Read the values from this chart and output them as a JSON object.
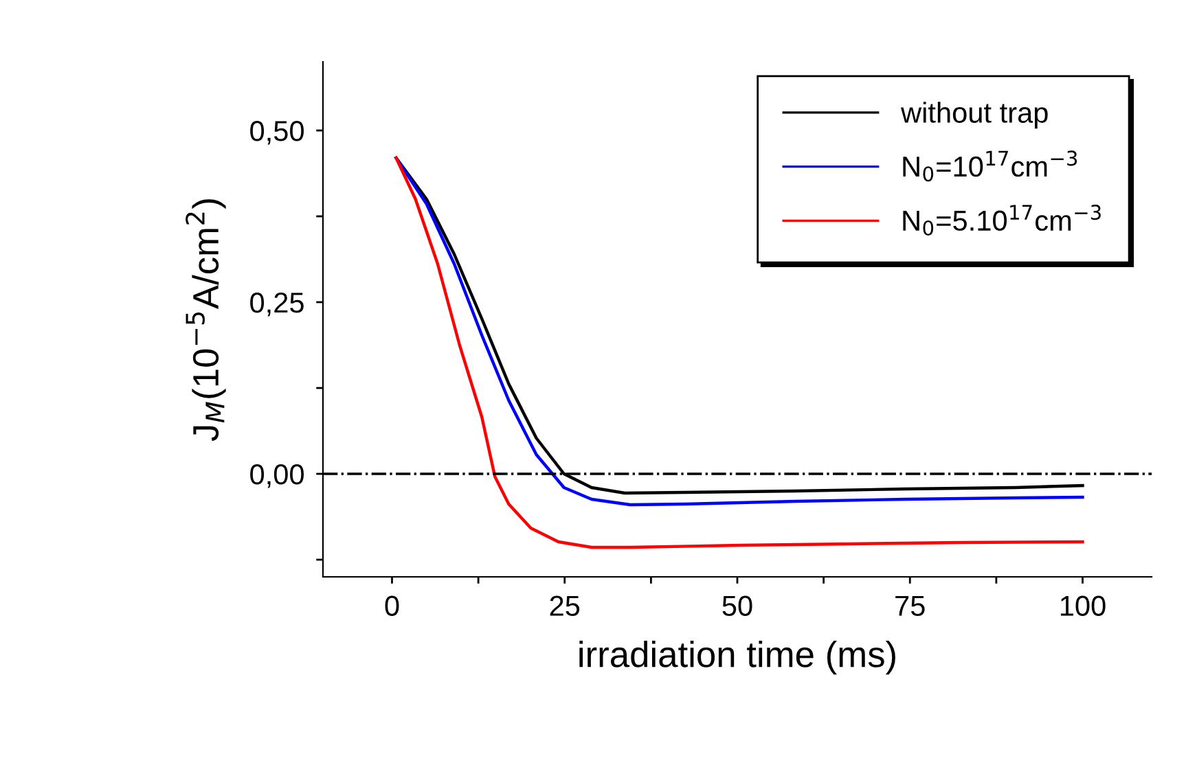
{
  "chart_data": {
    "type": "line",
    "xlabel": "irradiation time (ms)",
    "ylabel": "J$_{M}$(10$^{−5}$A/cm$^{2}$)",
    "xlim": [
      -10,
      110
    ],
    "ylim": [
      -0.15,
      0.6
    ],
    "xticks": [
      0,
      25,
      50,
      75,
      100,
      {
        "value": 12.5,
        "label": null
      },
      {
        "value": 37.5,
        "label": null
      },
      {
        "value": 62.5,
        "label": null
      },
      {
        "value": 87.5,
        "label": null
      }
    ],
    "yticks": [
      {
        "value": 0.0,
        "label": "0,00"
      },
      {
        "value": 0.25,
        "label": "0,25"
      },
      {
        "value": 0.5,
        "label": "0,50"
      },
      {
        "value": -0.125,
        "label": null
      },
      {
        "value": 0.125,
        "label": null
      },
      {
        "value": 0.375,
        "label": null
      }
    ],
    "grid": false,
    "legend": "top right",
    "line_style": "solid",
    "marker": "none",
    "ref_lines": [
      {
        "axis": "y",
        "value": 0,
        "label": null,
        "color": "#000000",
        "line_style": "dashdot"
      }
    ],
    "series": [
      {
        "name": "without trap",
        "color": "#000000",
        "x": [
          0.6,
          5.0,
          9.0,
          13.0,
          16.9,
          20.9,
          24.9,
          28.9,
          33.7,
          42.4,
          58.4,
          74.3,
          90.2,
          100
        ],
        "values": [
          0.46,
          0.4,
          0.32,
          0.226,
          0.131,
          0.052,
          0.0,
          -0.02,
          -0.028,
          -0.027,
          -0.025,
          -0.022,
          -0.02,
          -0.017
        ]
      },
      {
        "name": "N$_{0}$=10$^{17}$cm$^{−3}$",
        "color": "#0000ff",
        "x": [
          0.6,
          5.0,
          9.0,
          13.0,
          16.9,
          20.9,
          24.9,
          28.9,
          34.5,
          42.4,
          58.4,
          74.3,
          90.2,
          100
        ],
        "values": [
          0.46,
          0.393,
          0.306,
          0.202,
          0.107,
          0.028,
          -0.02,
          -0.037,
          -0.045,
          -0.044,
          -0.04,
          -0.037,
          -0.035,
          -0.034
        ]
      },
      {
        "name": "N$_{0}$=5.10$^{17}$cm$^{−3}$",
        "color": "#ff0000",
        "x": [
          0.6,
          3.4,
          6.6,
          9.8,
          13.0,
          14.9,
          16.9,
          20.1,
          24.1,
          28.9,
          34.5,
          50.4,
          66.3,
          82.3,
          100
        ],
        "values": [
          0.46,
          0.4,
          0.306,
          0.187,
          0.083,
          -0.004,
          -0.044,
          -0.079,
          -0.099,
          -0.107,
          -0.107,
          -0.104,
          -0.102,
          -0.1,
          -0.099
        ]
      }
    ]
  }
}
